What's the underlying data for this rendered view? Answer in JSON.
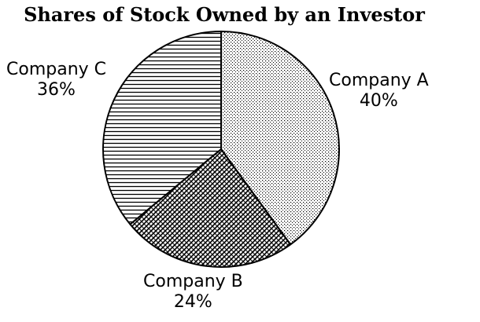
{
  "chart_data": {
    "type": "pie",
    "title": "Shares of Stock Owned by an Investor",
    "slices": [
      {
        "name": "Company A",
        "value": 40,
        "value_label": "40%",
        "pattern": "dots"
      },
      {
        "name": "Company B",
        "value": 24,
        "value_label": "24%",
        "pattern": "diagonal-crosshatch"
      },
      {
        "name": "Company C",
        "value": 36,
        "value_label": "36%",
        "pattern": "horizontal-lines"
      }
    ],
    "start_angle_deg": 0,
    "direction": "clockwise",
    "colors": {
      "outline": "#000000",
      "pattern": "#000000",
      "background": "#ffffff"
    }
  }
}
